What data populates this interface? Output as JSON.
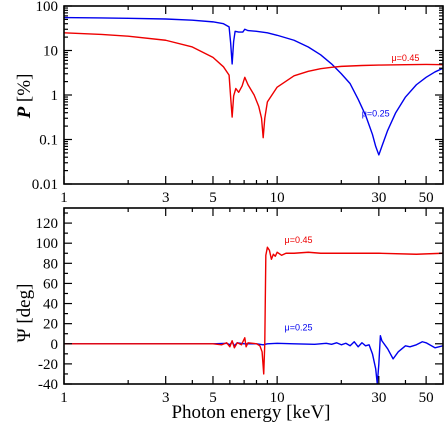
{
  "chart_data": [
    {
      "type": "line",
      "ylabel": "P [%]",
      "ylabel_parts": {
        "symbol": "P",
        "unit": "[%]"
      },
      "xscale": "log",
      "yscale": "log",
      "xlim": [
        1,
        60
      ],
      "ylim": [
        0.01,
        100
      ],
      "x_ticks": [
        1,
        3,
        5,
        10,
        30,
        50
      ],
      "x_tick_labels": [
        "1",
        "3",
        "5",
        "10",
        "30",
        "50"
      ],
      "y_ticks": [
        0.01,
        0.1,
        1,
        10,
        100
      ],
      "y_tick_labels": [
        "0.01",
        "0.1",
        "1",
        "10",
        "100"
      ],
      "series": [
        {
          "name": "μ=0.25",
          "color": "#0000ee",
          "points": [
            [
              1,
              55
            ],
            [
              1.5,
              54
            ],
            [
              2,
              53
            ],
            [
              3,
              51
            ],
            [
              4,
              48
            ],
            [
              5,
              44
            ],
            [
              5.6,
              40
            ],
            [
              5.95,
              34
            ],
            [
              6.05,
              15
            ],
            [
              6.15,
              5.0
            ],
            [
              6.25,
              16
            ],
            [
              6.35,
              27
            ],
            [
              6.6,
              26
            ],
            [
              6.9,
              26
            ],
            [
              7.05,
              30
            ],
            [
              7.3,
              28
            ],
            [
              8,
              27
            ],
            [
              9,
              25
            ],
            [
              10,
              22
            ],
            [
              12,
              17
            ],
            [
              14,
              12
            ],
            [
              16,
              8
            ],
            [
              18,
              5
            ],
            [
              20,
              3
            ],
            [
              22,
              1.8
            ],
            [
              24,
              0.8
            ],
            [
              26,
              0.35
            ],
            [
              28,
              0.13
            ],
            [
              29,
              0.07
            ],
            [
              30,
              0.045
            ],
            [
              31,
              0.07
            ],
            [
              33,
              0.16
            ],
            [
              36,
              0.4
            ],
            [
              40,
              0.9
            ],
            [
              45,
              1.7
            ],
            [
              50,
              2.5
            ],
            [
              55,
              3.3
            ],
            [
              60,
              4.0
            ]
          ]
        },
        {
          "name": "μ=0.45",
          "color": "#ee0000",
          "points": [
            [
              1,
              25
            ],
            [
              1.5,
              23
            ],
            [
              2,
              21
            ],
            [
              3,
              17
            ],
            [
              4,
              12
            ],
            [
              5,
              7
            ],
            [
              5.6,
              4.3
            ],
            [
              5.95,
              2.8
            ],
            [
              6.05,
              0.9
            ],
            [
              6.15,
              0.32
            ],
            [
              6.25,
              0.95
            ],
            [
              6.4,
              1.4
            ],
            [
              6.6,
              1.15
            ],
            [
              6.85,
              1.6
            ],
            [
              7.05,
              2.5
            ],
            [
              7.3,
              1.7
            ],
            [
              7.8,
              1.0
            ],
            [
              8.2,
              0.55
            ],
            [
              8.45,
              0.3
            ],
            [
              8.6,
              0.11
            ],
            [
              8.75,
              0.3
            ],
            [
              9,
              0.7
            ],
            [
              10,
              1.5
            ],
            [
              12,
              2.7
            ],
            [
              14,
              3.4
            ],
            [
              16,
              3.9
            ],
            [
              18,
              4.2
            ],
            [
              20,
              4.4
            ],
            [
              25,
              4.6
            ],
            [
              30,
              4.7
            ],
            [
              40,
              4.8
            ],
            [
              50,
              4.85
            ],
            [
              60,
              4.8
            ]
          ]
        }
      ],
      "annotations": [
        {
          "text": "μ=0.45",
          "x": 40,
          "y": 5.8,
          "color": "#ee0000"
        },
        {
          "text": "μ=0.25",
          "x": 29,
          "y": 0.33,
          "color": "#0000ee"
        }
      ]
    },
    {
      "type": "line",
      "xlabel": "Photon energy [keV]",
      "ylabel": "Ψ [deg]",
      "xscale": "log",
      "yscale": "linear",
      "xlim": [
        1,
        60
      ],
      "ylim": [
        -40,
        135
      ],
      "x_ticks": [
        1,
        3,
        5,
        10,
        30,
        50
      ],
      "x_tick_labels": [
        "1",
        "3",
        "5",
        "10",
        "30",
        "50"
      ],
      "y_ticks": [
        -40,
        -20,
        0,
        20,
        40,
        60,
        80,
        100,
        120
      ],
      "y_tick_labels": [
        "-40",
        "-20",
        "0",
        "20",
        "40",
        "60",
        "80",
        "100",
        "120"
      ],
      "series": [
        {
          "name": "μ=0.25",
          "color": "#0000ee",
          "points": [
            [
              1,
              0
            ],
            [
              5,
              0
            ],
            [
              5.8,
              0.5
            ],
            [
              6.0,
              -1
            ],
            [
              6.15,
              2
            ],
            [
              6.3,
              -2
            ],
            [
              6.5,
              1
            ],
            [
              7,
              0
            ],
            [
              8,
              0
            ],
            [
              8.6,
              -1
            ],
            [
              9,
              0
            ],
            [
              10,
              0.5
            ],
            [
              12,
              0
            ],
            [
              15,
              -0.5
            ],
            [
              17,
              0.5
            ],
            [
              18,
              -0.5
            ],
            [
              19,
              1
            ],
            [
              20,
              -1
            ],
            [
              21,
              0.5
            ],
            [
              22,
              -2
            ],
            [
              23,
              2
            ],
            [
              24,
              -3
            ],
            [
              25,
              1
            ],
            [
              26,
              -2
            ],
            [
              27,
              -1
            ],
            [
              28,
              -10
            ],
            [
              29,
              -25
            ],
            [
              29.5,
              -40
            ],
            [
              30,
              -20
            ],
            [
              30.5,
              8
            ],
            [
              31,
              3
            ],
            [
              33,
              -5
            ],
            [
              35,
              -15
            ],
            [
              37,
              -8
            ],
            [
              40,
              -2
            ],
            [
              42,
              -3
            ],
            [
              45,
              -1
            ],
            [
              48,
              2
            ],
            [
              50,
              1
            ],
            [
              55,
              -4
            ],
            [
              60,
              -2
            ]
          ]
        },
        {
          "name": "μ=0.45",
          "color": "#ee0000",
          "points": [
            [
              1,
              0
            ],
            [
              5,
              0
            ],
            [
              5.5,
              -1
            ],
            [
              5.8,
              1
            ],
            [
              6.0,
              -3
            ],
            [
              6.15,
              3
            ],
            [
              6.3,
              -4
            ],
            [
              6.5,
              1
            ],
            [
              6.8,
              -1
            ],
            [
              7.05,
              6
            ],
            [
              7.15,
              -3
            ],
            [
              7.3,
              1
            ],
            [
              8,
              0
            ],
            [
              8.3,
              -2
            ],
            [
              8.5,
              -8
            ],
            [
              8.65,
              -30
            ],
            [
              8.75,
              0
            ],
            [
              8.85,
              88
            ],
            [
              9,
              96
            ],
            [
              9.2,
              93
            ],
            [
              9.4,
              84
            ],
            [
              9.6,
              89
            ],
            [
              9.8,
              87
            ],
            [
              10,
              91
            ],
            [
              10.5,
              88
            ],
            [
              11,
              90
            ],
            [
              12,
              90
            ],
            [
              14,
              91
            ],
            [
              16,
              90
            ],
            [
              20,
              90
            ],
            [
              30,
              90
            ],
            [
              45,
              89
            ],
            [
              60,
              90
            ]
          ]
        }
      ],
      "annotations": [
        {
          "text": "μ=0.45",
          "x": 12.6,
          "y": 100,
          "color": "#ee0000"
        },
        {
          "text": "μ=0.25",
          "x": 12.6,
          "y": 13,
          "color": "#0000ee"
        }
      ]
    }
  ]
}
